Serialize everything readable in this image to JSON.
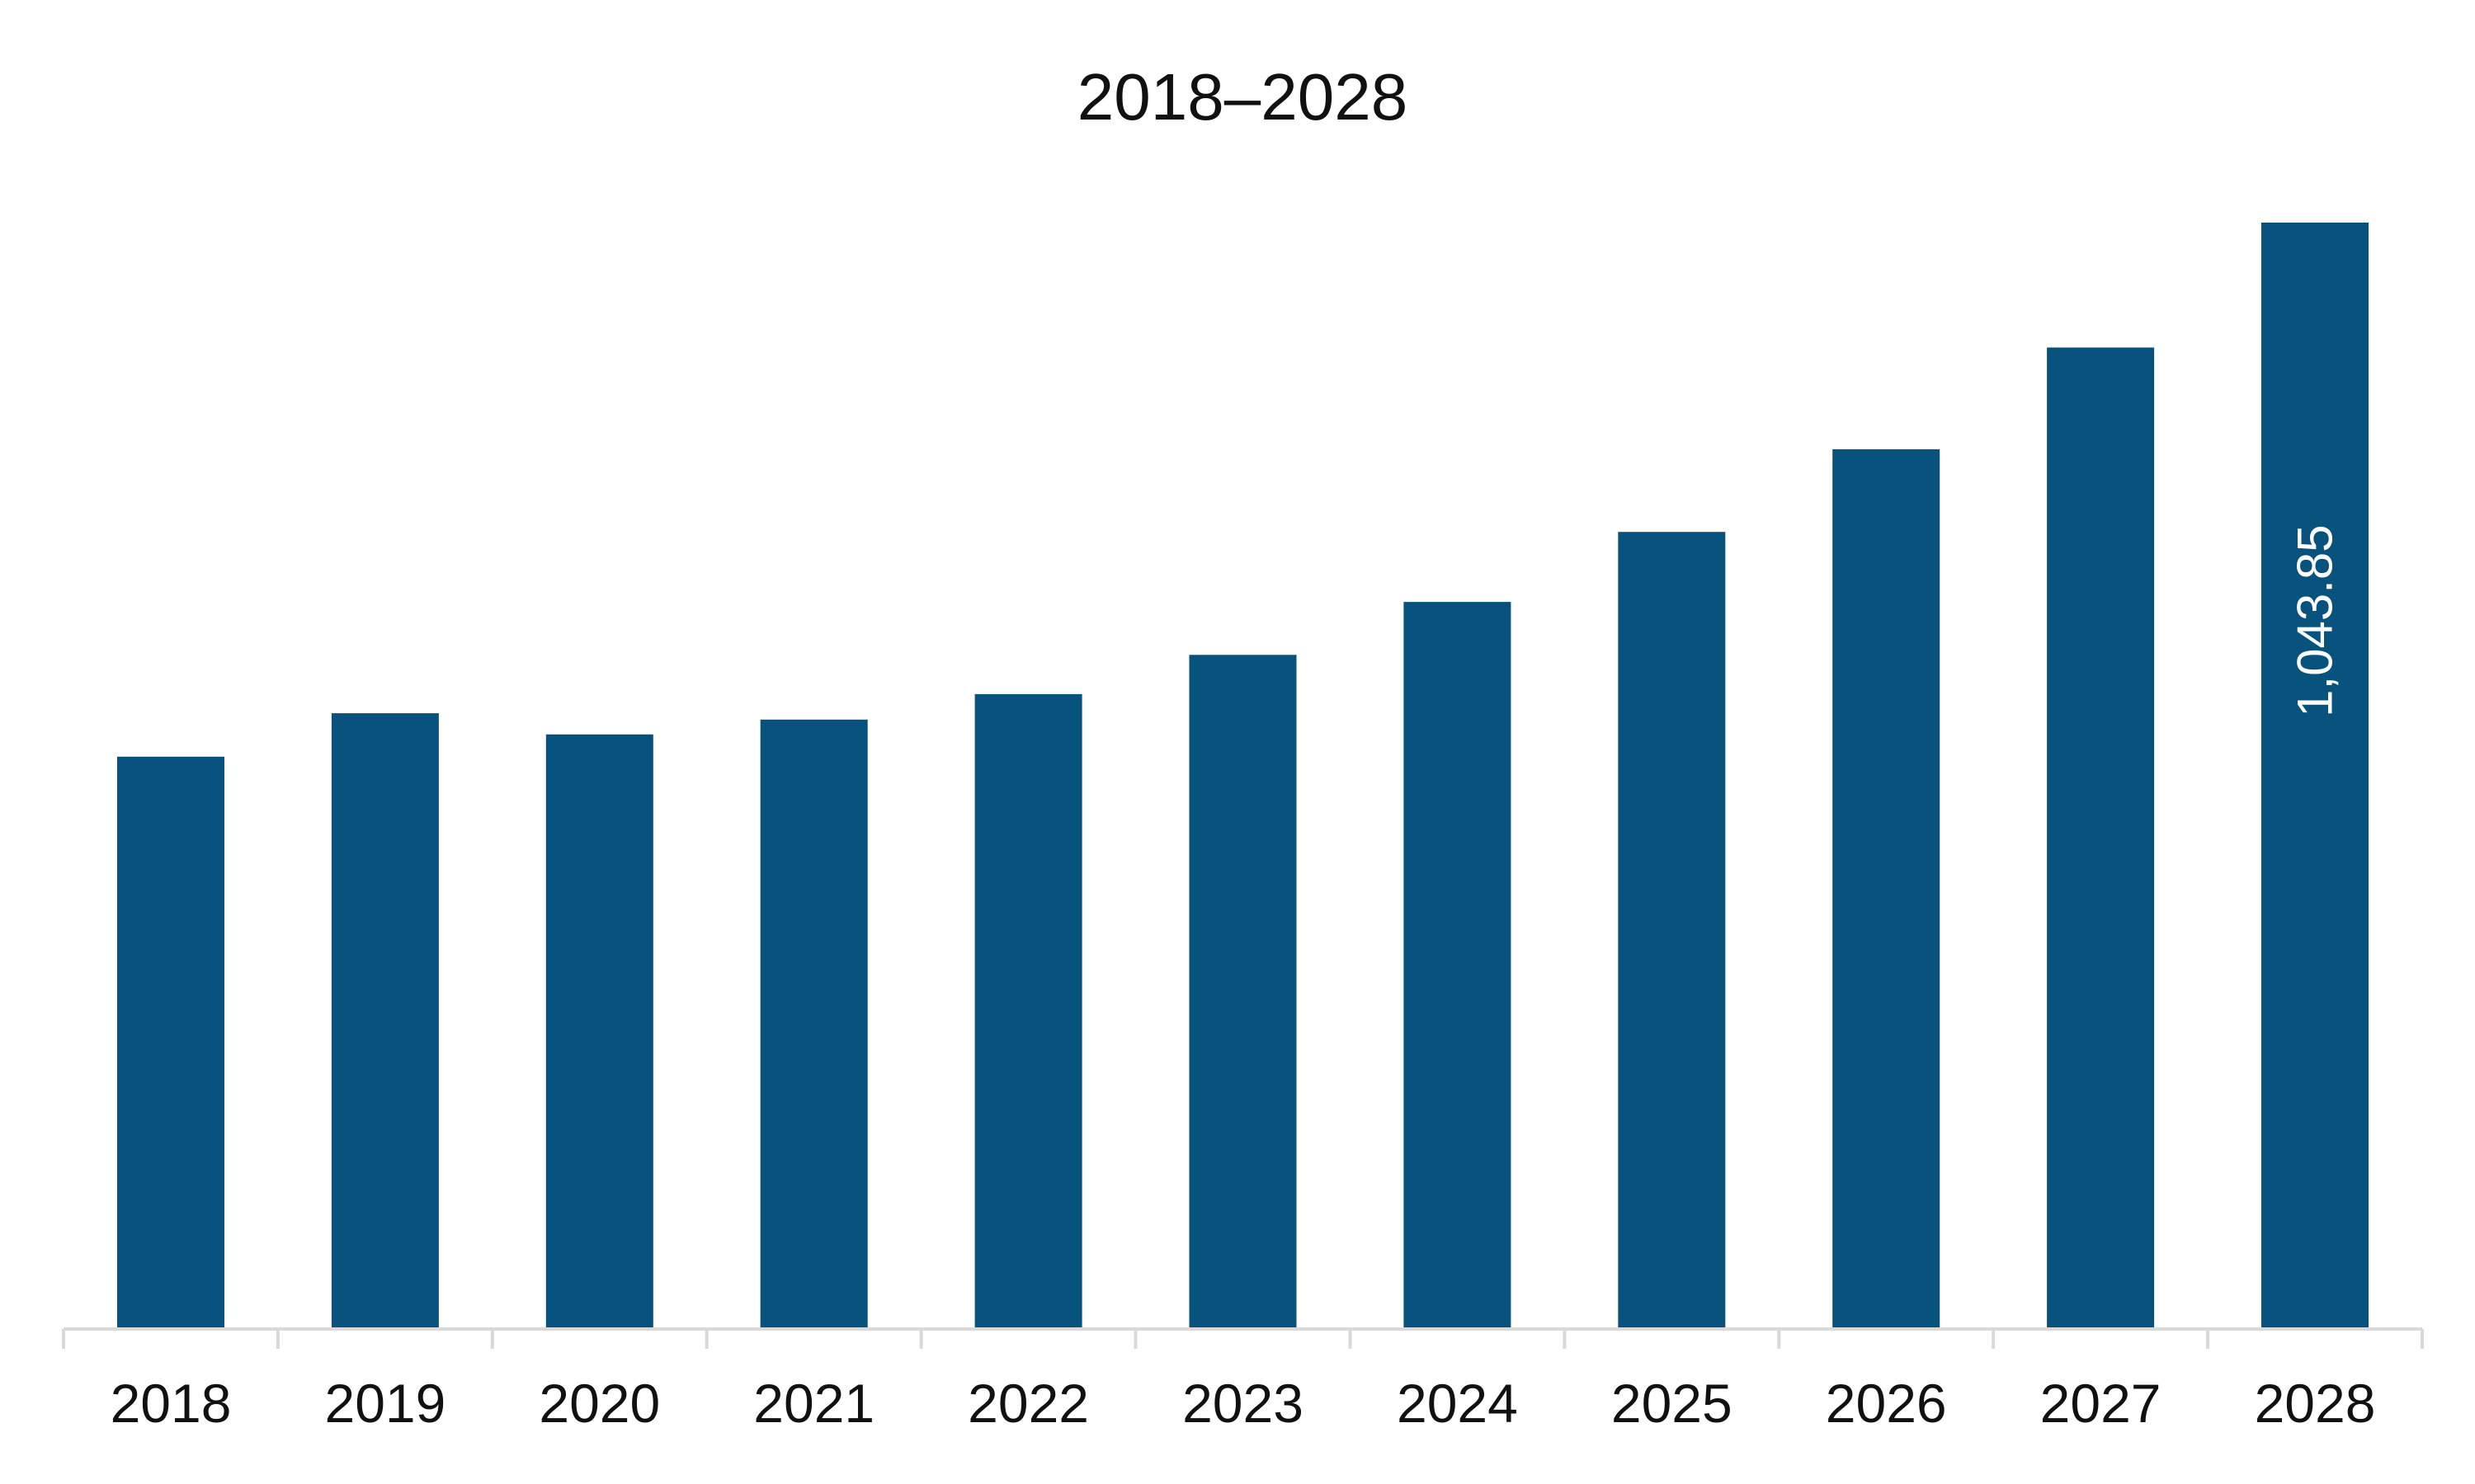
{
  "chart_data": {
    "type": "bar",
    "title": "2018–2028",
    "xlabel": "",
    "ylabel": "",
    "categories": [
      "2018",
      "2019",
      "2020",
      "2021",
      "2022",
      "2023",
      "2024",
      "2025",
      "2026",
      "2027",
      "2028"
    ],
    "series": [
      {
        "values": [
          540,
          581,
          561,
          575,
          599,
          636,
          686,
          752,
          830,
          926,
          1043.85
        ],
        "color": "#08527e"
      }
    ],
    "data_labels": [
      {
        "category": "2028",
        "text": "1,043.85"
      }
    ],
    "ylim": [
      0,
      1043.85
    ],
    "grid": false,
    "legend": "none",
    "colors": {
      "bar": "#08527e",
      "axis": "#d9d9d9",
      "text": "#111111",
      "data_label": "#ffffff"
    }
  }
}
